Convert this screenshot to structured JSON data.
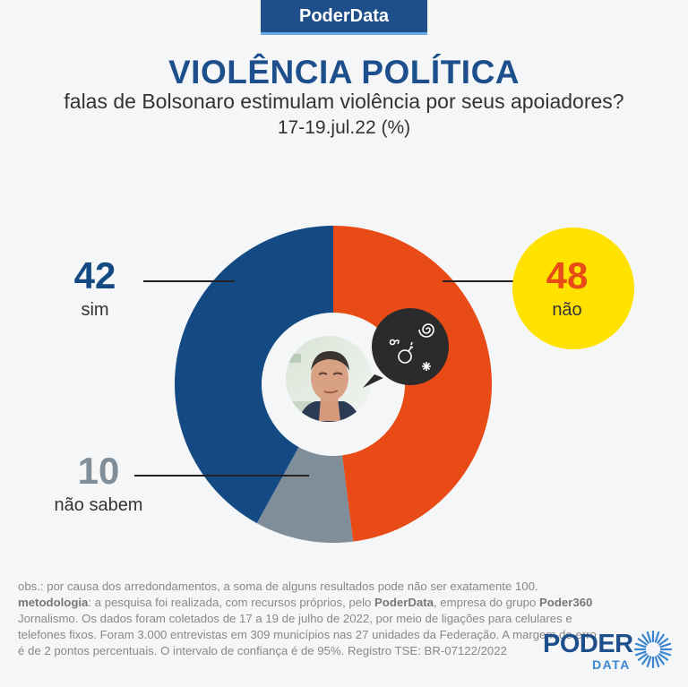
{
  "brand": {
    "label": "PoderData"
  },
  "chart_data": {
    "type": "pie",
    "style": "donut",
    "title": "VIOLÊNCIA POLÍTICA",
    "subtitle": "falas de Bolsonaro estimulam violência por seus apoiadores?",
    "date": "17-19.jul.22 (%)",
    "slices": [
      {
        "label": "não",
        "value": 48,
        "color": "#e94b16"
      },
      {
        "label": "não sabem",
        "value": 10,
        "color": "#7f8e99"
      },
      {
        "label": "sim",
        "value": 42,
        "color": "#134a84"
      }
    ],
    "highlight_color": "#ffe200"
  },
  "notes": {
    "obs": "obs.: por causa dos arredondamentos, a soma de alguns resultados pode não ser exatamente 100.",
    "metodologia_label": "metodologia",
    "metodologia_text_1": ": a pesquisa foi realizada, com recursos próprios, pelo ",
    "poderdata": "PoderData",
    "metodologia_text_2": ", empresa do grupo ",
    "poder360": "Poder360",
    "metodologia_text_3": " Jornalismo. Os dados foram coletados de 17 a 19 de julho de 2022, por meio de ligações para celulares e telefones fixos. Foram 3.000 entrevistas em 309 municípios nas 27 unidades da Federação. A margem de erro é de 2 pontos percentuais. O intervalo de confiança é de 95%. Registro TSE: BR-07122/2022"
  },
  "logo": {
    "poder": "PODER",
    "data": "DATA"
  }
}
